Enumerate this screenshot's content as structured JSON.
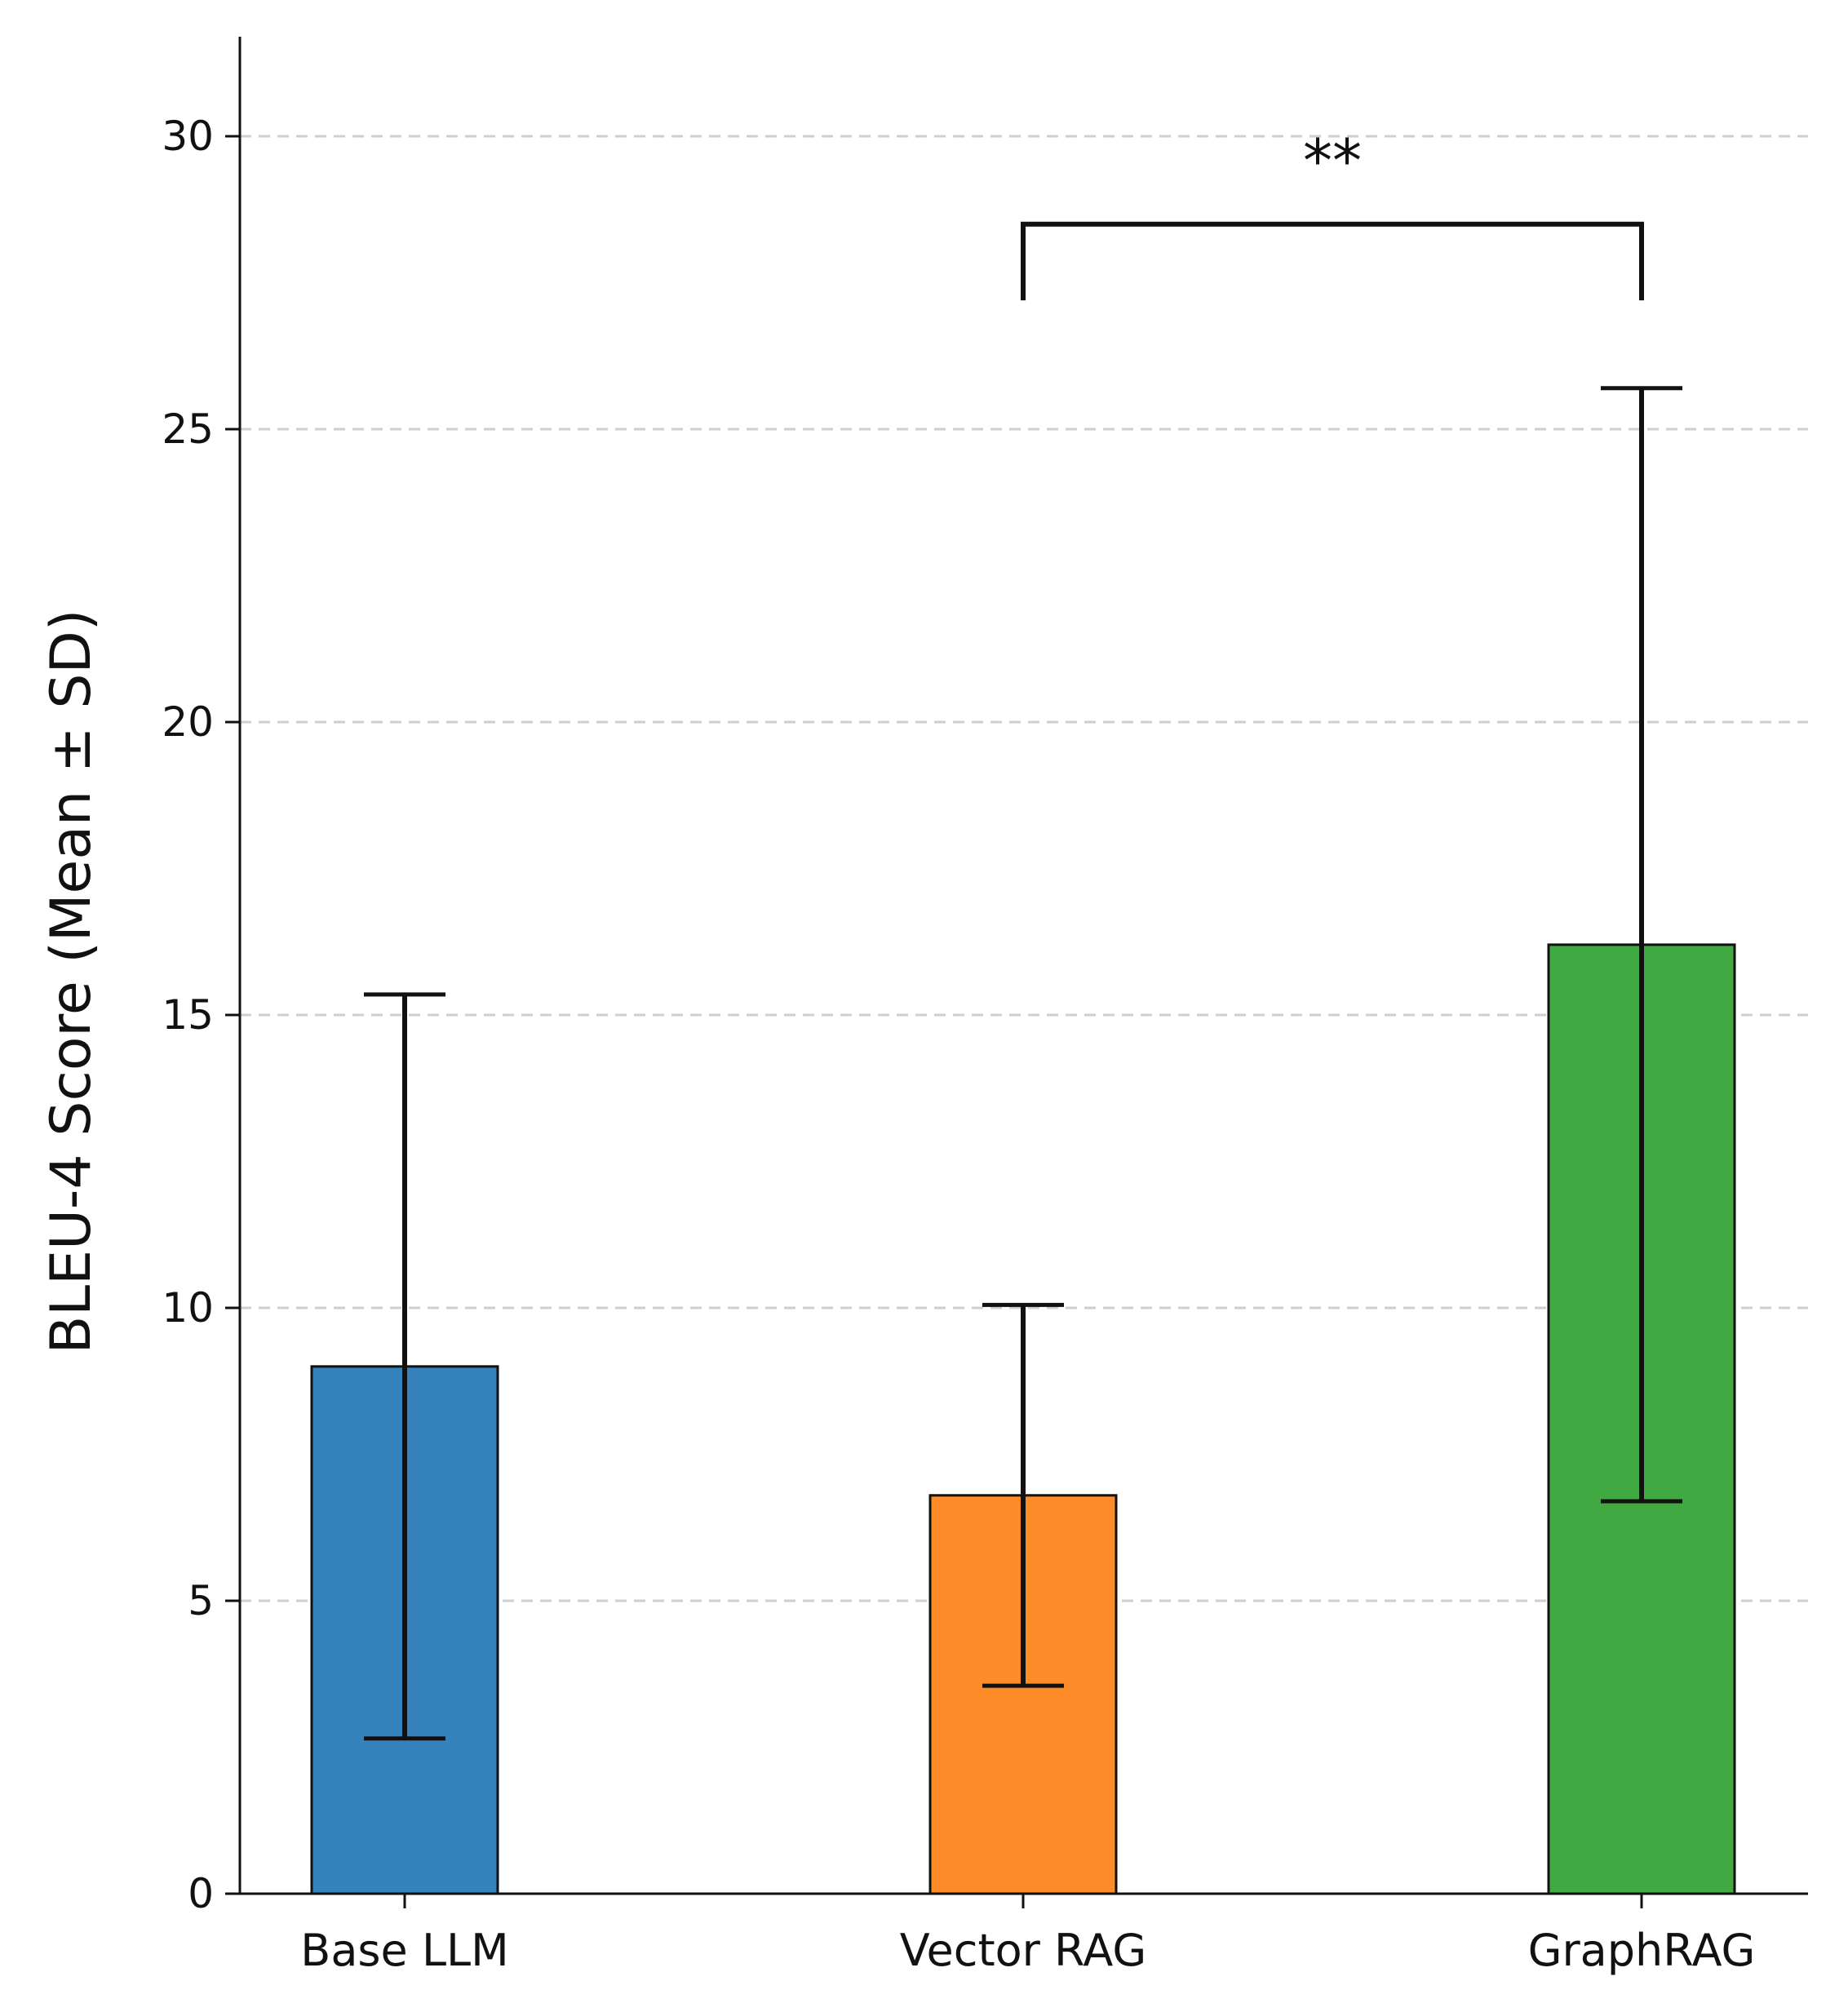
{
  "chart_data": {
    "type": "bar",
    "title": "",
    "xlabel": "",
    "ylabel": "BLEU-4 Score (Mean ± SD)",
    "ylim": [
      0,
      31.7
    ],
    "yticks": [
      0,
      5,
      10,
      15,
      20,
      25,
      30
    ],
    "ytick_labels": [
      "0",
      "5",
      "10",
      "15",
      "20",
      "25",
      "30"
    ],
    "grid": "y-dashed",
    "categories": [
      "Base LLM",
      "Vector RAG",
      "GraphRAG"
    ],
    "values": [
      9.0,
      6.8,
      16.2
    ],
    "errors": [
      6.35,
      3.25,
      9.5
    ],
    "colors": [
      "#3582bd",
      "#fd8b27",
      "#41a941"
    ],
    "significance": {
      "from_category": 1,
      "to_category": 2,
      "label": "**",
      "bracket_top": 28.5,
      "bracket_bottom": 27.2
    }
  }
}
